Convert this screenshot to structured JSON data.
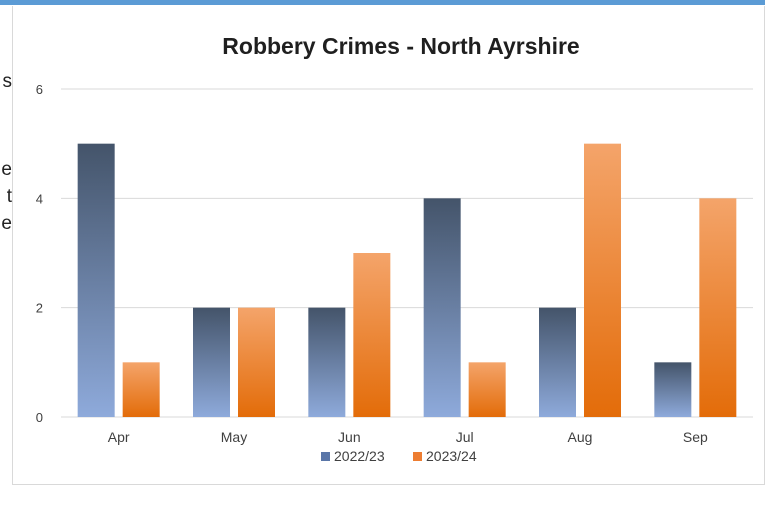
{
  "page_fragments": [
    "s",
    "e",
    "t",
    "e"
  ],
  "chart_data": {
    "type": "bar",
    "title": "Robbery Crimes - North Ayrshire",
    "categories": [
      "Apr",
      "May",
      "Jun",
      "Jul",
      "Aug",
      "Sep"
    ],
    "series": [
      {
        "name": "2022/23",
        "values": [
          5,
          2,
          2,
          4,
          2,
          1
        ]
      },
      {
        "name": "2023/24",
        "values": [
          1,
          2,
          3,
          1,
          5,
          4
        ]
      }
    ],
    "ylim": [
      0,
      6
    ],
    "yticks": [
      "0",
      "2",
      "4",
      "6"
    ],
    "grid": true,
    "legend": "bottom",
    "colors": {
      "series1_top": "#44546a",
      "series1_bottom": "#8eaadb",
      "series2_top": "#f4a46a",
      "series2_bottom": "#e36c09"
    }
  }
}
